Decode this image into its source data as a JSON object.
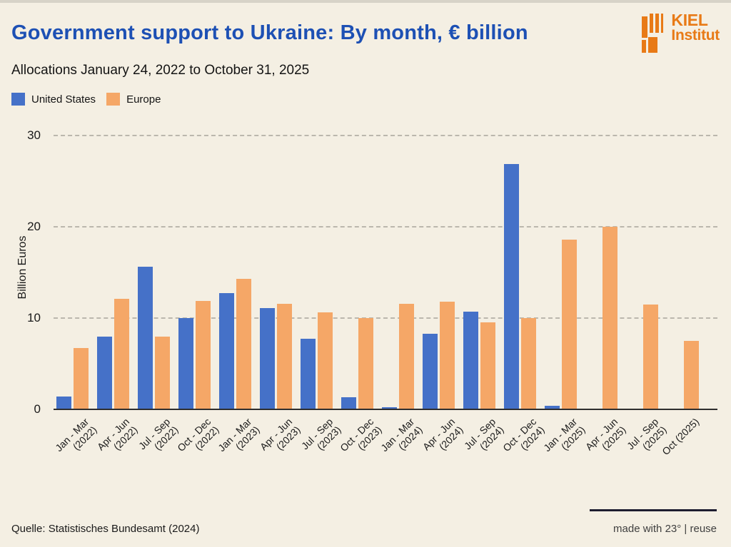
{
  "page": {
    "background": "#F4EFE3"
  },
  "header": {
    "title": "Government support to Ukraine: By month, € billion",
    "subtitle": "Allocations January 24, 2022 to October 31, 2025",
    "logo": {
      "line1": "KIEL",
      "line2": "Institut",
      "color": "#E87A16"
    }
  },
  "legend": {
    "items": [
      {
        "label": "United States",
        "color": "#4571C8"
      },
      {
        "label": "Europe",
        "color": "#F5A767"
      }
    ]
  },
  "chart_data": {
    "type": "bar",
    "title": "Government support to Ukraine: By month, € billion",
    "subtitle": "Allocations January 24, 2022 to October 31, 2025",
    "ylabel": "Billion Euros",
    "xlabel": "",
    "yticks": [
      0,
      10,
      20,
      30
    ],
    "ylim": [
      0,
      32
    ],
    "grid": "horizontal-dashed",
    "legend_position": "top-left",
    "categories": [
      "Jan - Mar (2022)",
      "Apr - Jun (2022)",
      "Jul - Sep (2022)",
      "Oct - Dec (2022)",
      "Jan - Mar (2023)",
      "Apr - Jun (2023)",
      "Jul - Sep (2023)",
      "Oct - Dec (2023)",
      "Jan - Mar (2024)",
      "Apr - Jun (2024)",
      "Jul - Sep (2024)",
      "Oct - Dec (2024)",
      "Jan - Mar (2025)",
      "Apr - Jun (2025)",
      "Jul - Sep (2025)",
      "Oct (2025)"
    ],
    "series": [
      {
        "name": "United States",
        "color": "#4571C8",
        "values": [
          1.4,
          8.0,
          15.6,
          10.0,
          12.7,
          11.1,
          7.7,
          1.3,
          0.2,
          8.3,
          10.7,
          26.9,
          0.4,
          0,
          0,
          0
        ]
      },
      {
        "name": "Europe",
        "color": "#F5A767",
        "values": [
          6.7,
          12.1,
          8.0,
          11.9,
          14.3,
          11.6,
          10.6,
          10.0,
          11.6,
          11.8,
          9.5,
          10.0,
          18.6,
          20.0,
          11.5,
          7.5
        ]
      }
    ]
  },
  "footer": {
    "source": "Quelle: Statistisches Bundesamt (2024)",
    "credit": "made with 23° | reuse"
  }
}
